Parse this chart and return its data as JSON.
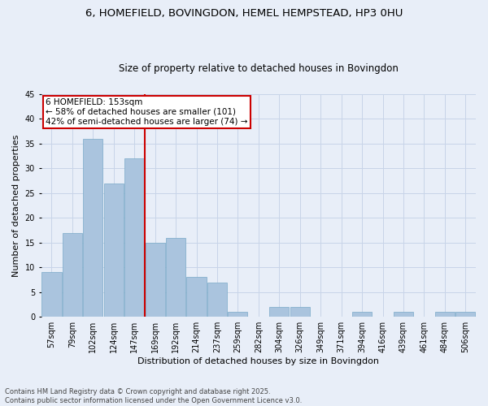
{
  "title_line1": "6, HOMEFIELD, BOVINGDON, HEMEL HEMPSTEAD, HP3 0HU",
  "title_line2": "Size of property relative to detached houses in Bovingdon",
  "xlabel": "Distribution of detached houses by size in Bovingdon",
  "ylabel": "Number of detached properties",
  "categories": [
    "57sqm",
    "79sqm",
    "102sqm",
    "124sqm",
    "147sqm",
    "169sqm",
    "192sqm",
    "214sqm",
    "237sqm",
    "259sqm",
    "282sqm",
    "304sqm",
    "326sqm",
    "349sqm",
    "371sqm",
    "394sqm",
    "416sqm",
    "439sqm",
    "461sqm",
    "484sqm",
    "506sqm"
  ],
  "values": [
    9,
    17,
    36,
    27,
    32,
    15,
    16,
    8,
    7,
    1,
    0,
    2,
    2,
    0,
    0,
    1,
    0,
    1,
    0,
    1,
    1
  ],
  "bar_color": "#aac4de",
  "bar_edge_color": "#7aaac8",
  "vline_color": "#cc0000",
  "vline_index": 4,
  "annotation_text": "6 HOMEFIELD: 153sqm\n← 58% of detached houses are smaller (101)\n42% of semi-detached houses are larger (74) →",
  "annotation_box_color": "#ffffff",
  "annotation_box_edge": "#cc0000",
  "ylim": [
    0,
    45
  ],
  "yticks": [
    0,
    5,
    10,
    15,
    20,
    25,
    30,
    35,
    40,
    45
  ],
  "grid_color": "#c8d4e8",
  "bg_color": "#e8eef8",
  "footer_line1": "Contains HM Land Registry data © Crown copyright and database right 2025.",
  "footer_line2": "Contains public sector information licensed under the Open Government Licence v3.0.",
  "title_fontsize": 9.5,
  "subtitle_fontsize": 8.5,
  "tick_fontsize": 7,
  "label_fontsize": 8,
  "annot_fontsize": 7.5,
  "footer_fontsize": 6
}
